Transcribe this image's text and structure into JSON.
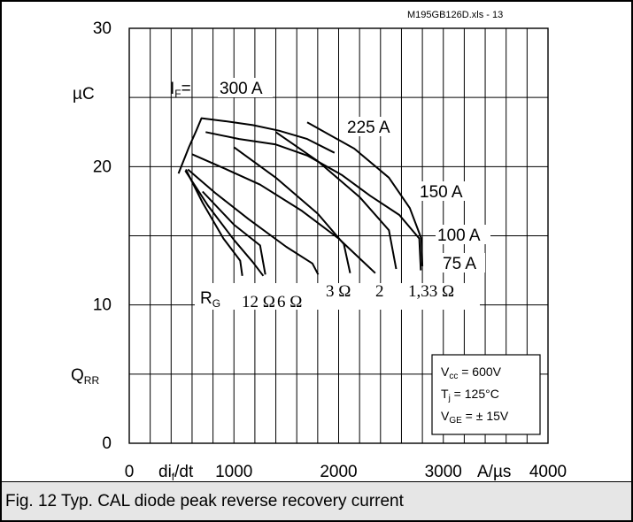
{
  "chart_data": {
    "type": "line",
    "source_ref": "M195GB126D.xls - 13",
    "caption": "Fig. 12 Typ. CAL diode peak reverse recovery current",
    "xlabel": "dif/dt",
    "xlabel_main": "di",
    "xlabel_sub": "f",
    "xlabel_tail": "/dt",
    "xunit": "A/µs",
    "ylabel_top": "µC",
    "ylabel": "QRR",
    "ylabel_main": "Q",
    "ylabel_sub": "RR",
    "xlim": [
      0,
      4000
    ],
    "ylim": [
      0,
      30
    ],
    "xticks": [
      0,
      1000,
      2000,
      3000,
      4000
    ],
    "yticks": [
      0,
      10,
      20,
      30
    ],
    "grid": true,
    "if_prefix_main": "I",
    "if_prefix_sub": "F",
    "if_prefix_tail": "=",
    "rg_label_main": "R",
    "rg_label_sub": "G",
    "series": [
      {
        "name": "300 A",
        "label": "300 A",
        "points": [
          [
            470,
            19.5
          ],
          [
            570,
            21.4
          ],
          [
            640,
            22.6
          ],
          [
            690,
            23.5
          ],
          [
            900,
            23.3
          ],
          [
            1180,
            23
          ],
          [
            1430,
            22.6
          ],
          [
            1700,
            22
          ],
          [
            1960,
            21
          ]
        ]
      },
      {
        "name": "225 A",
        "label": "225 A",
        "points": [
          [
            730,
            22.5
          ],
          [
            1050,
            22
          ],
          [
            1400,
            21.6
          ],
          [
            1700,
            20.8
          ],
          [
            2030,
            19.4
          ],
          [
            2300,
            17.9
          ],
          [
            2580,
            16.5
          ],
          [
            2770,
            14.8
          ],
          [
            2785,
            12.5
          ]
        ]
      },
      {
        "name": "150 A",
        "label": "150 A",
        "points": [
          [
            600,
            20.9
          ],
          [
            900,
            19.9
          ],
          [
            1250,
            18.7
          ],
          [
            1650,
            16.8
          ],
          [
            2000,
            14.8
          ],
          [
            2280,
            12.8
          ],
          [
            2350,
            12.3
          ]
        ]
      },
      {
        "name": "100 A",
        "label": "100 A",
        "points": [
          [
            560,
            19.8
          ],
          [
            820,
            18.1
          ],
          [
            1140,
            16.2
          ],
          [
            1500,
            14.2
          ],
          [
            1750,
            13.0
          ],
          [
            1805,
            12.2
          ]
        ]
      },
      {
        "name": "75 A",
        "label": "75 A",
        "points": [
          [
            535,
            19.7
          ],
          [
            750,
            17.2
          ],
          [
            1000,
            14.7
          ],
          [
            1180,
            13.1
          ],
          [
            1280,
            12.1
          ]
        ]
      }
    ],
    "constant_rg_curves": [
      {
        "label": "12 Ω",
        "points": [
          [
            540,
            19.8
          ],
          [
            700,
            17.4
          ],
          [
            900,
            14.8
          ],
          [
            1060,
            13.2
          ],
          [
            1080,
            12.1
          ]
        ]
      },
      {
        "label": "6 Ω",
        "points": [
          [
            700,
            18.2
          ],
          [
            1000,
            15.8
          ],
          [
            1250,
            14.3
          ],
          [
            1300,
            12.2
          ]
        ]
      },
      {
        "label": "3 Ω",
        "points": [
          [
            1000,
            21.4
          ],
          [
            1400,
            19.2
          ],
          [
            1800,
            16.6
          ],
          [
            2050,
            14.4
          ],
          [
            2110,
            12.3
          ]
        ]
      },
      {
        "label": "2",
        "points": [
          [
            1400,
            22.5
          ],
          [
            1800,
            20.4
          ],
          [
            2200,
            17.8
          ],
          [
            2480,
            15.4
          ],
          [
            2550,
            12.6
          ]
        ]
      },
      {
        "label": "1,33 Ω",
        "points": [
          [
            1700,
            23.2
          ],
          [
            2150,
            21.3
          ],
          [
            2480,
            19.2
          ],
          [
            2680,
            17.0
          ],
          [
            2790,
            14.8
          ],
          [
            2800,
            12.8
          ]
        ]
      }
    ],
    "curve_labels": {
      "if_300": "300 A",
      "if_225": "225 A",
      "if_150": "150 A",
      "if_100": "100 A",
      "if_75": "75 A",
      "rg_12": "12 Ω",
      "rg_6": "6 Ω",
      "rg_3": "3 Ω",
      "rg_2": "2",
      "rg_133": "1,33 Ω"
    },
    "legend_box": {
      "l1_main": "V",
      "l1_sub": "cc",
      "l1_tail": " = 600V",
      "l2_main": "T",
      "l2_sub": "j",
      "l2_tail": " = 125°C",
      "l3_main": "V",
      "l3_sub": "GE",
      "l3_tail": " = ± 15V",
      "placement": "bottom-right"
    }
  }
}
